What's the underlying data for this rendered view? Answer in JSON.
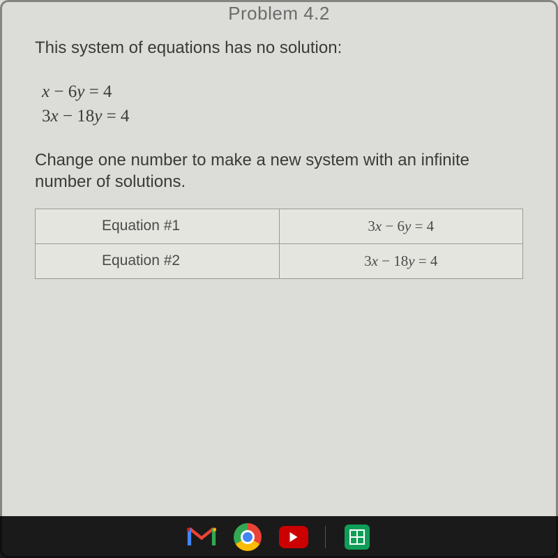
{
  "problem": {
    "title": "Problem 4.2",
    "intro": "This system of equations has no solution:",
    "equations": {
      "eq1_html": "<span class='var'>x</span> &minus; 6<span class='var'>y</span> = 4",
      "eq2_html": "3<span class='var'>x</span> &minus; 18<span class='var'>y</span> = 4"
    },
    "instruction": "Change one number to make a new system with an infinite number of solutions.",
    "table": {
      "rows": [
        {
          "label": "Equation #1",
          "value_html": "3<span class='var'>x</span> &minus; 6<span class='var'>y</span> = 4"
        },
        {
          "label": "Equation #2",
          "value_html": "3<span class='var'>x</span> &minus; 18<span class='var'>y</span> = 4"
        }
      ]
    }
  },
  "colors": {
    "page_bg": "#dcddd8",
    "text_primary": "#3a3a3a",
    "text_title": "#6b6b6b",
    "table_border": "#9a9a94",
    "table_cell_bg": "#e5e5e0",
    "taskbar_bg": "#1a1a1a"
  },
  "typography": {
    "title_fontsize": 26,
    "body_fontsize": 24,
    "equation_fontsize": 25,
    "table_fontsize": 21
  },
  "taskbar": {
    "icons": [
      "gmail",
      "chrome",
      "youtube",
      "divider",
      "sheets"
    ]
  }
}
